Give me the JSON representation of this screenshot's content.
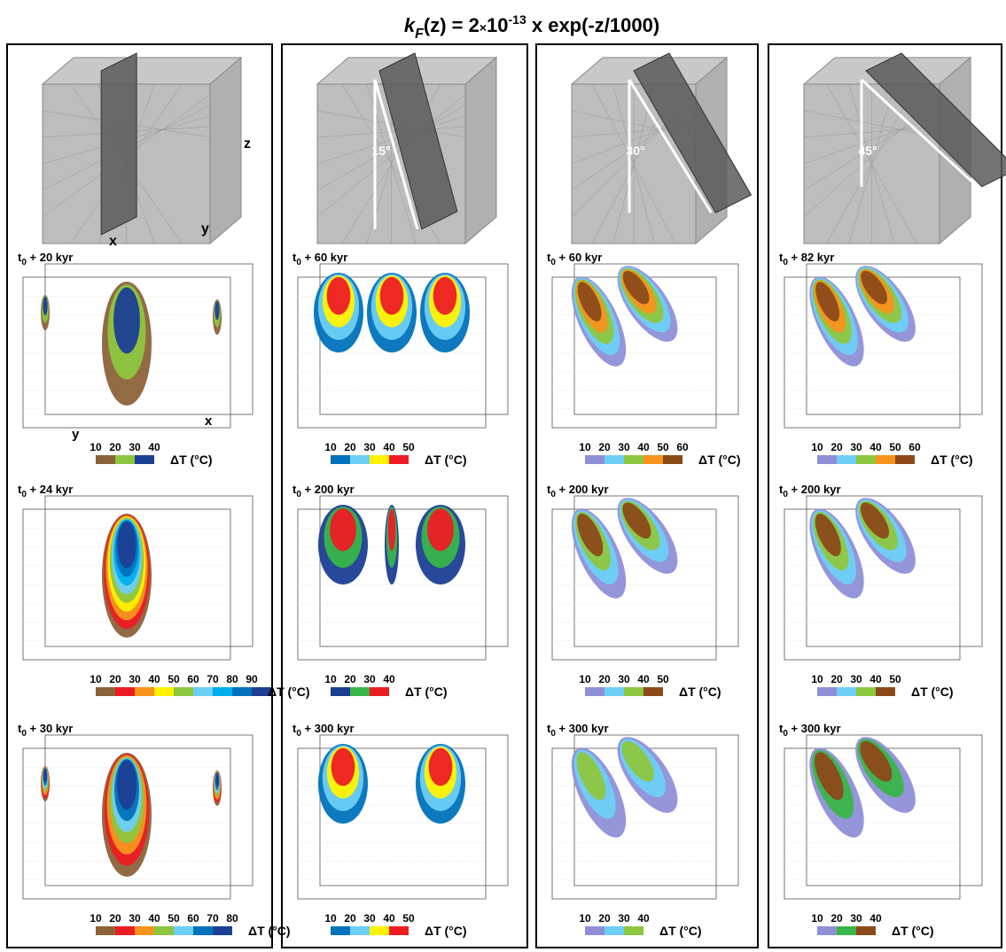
{
  "title": [
    "k",
    "F",
    "(z) = 2",
    "×",
    "10",
    "-13",
    " x exp(-z/1000)"
  ],
  "columns": [
    {
      "axes": [
        "x",
        "y",
        "z"
      ],
      "panels": [
        {
          "label": [
            "t",
            "0",
            " + 20 kyr"
          ],
          "axes": [
            "y",
            "x"
          ],
          "ticks": [
            10,
            20,
            30,
            40
          ],
          "colors": [
            "#8c6239",
            "#8dc63f",
            "#1c3f94"
          ],
          "unit": "ΔT  (°C)"
        },
        {
          "label": [
            "t",
            "0",
            " + 24 kyr"
          ],
          "ticks": [
            10,
            20,
            30,
            40,
            50,
            60,
            70,
            80,
            90
          ],
          "colors": [
            "#8c6239",
            "#ed1c24",
            "#f7941d",
            "#fff200",
            "#8dc63f",
            "#6dcff6",
            "#00aeef",
            "#0072bc",
            "#1c3f94"
          ],
          "unit": "ΔT  (°C)"
        },
        {
          "label": [
            "t",
            "0",
            " + 30 kyr"
          ],
          "ticks": [
            10,
            20,
            30,
            40,
            50,
            60,
            70,
            80
          ],
          "colors": [
            "#8c6239",
            "#ed1c24",
            "#f7941d",
            "#8dc63f",
            "#6dcff6",
            "#0072bc",
            "#1c3f94"
          ],
          "unit": "ΔT  (°C)"
        }
      ]
    },
    {
      "angle": "15°",
      "panels": [
        {
          "label": [
            "t",
            "0",
            " + 60 kyr"
          ],
          "ticks": [
            10,
            20,
            30,
            40,
            50
          ],
          "colors": [
            "#0072bc",
            "#6dcff6",
            "#fff200",
            "#ed1c24"
          ],
          "unit": "ΔT  (°C)"
        },
        {
          "label": [
            "t",
            "0",
            " + 200 kyr"
          ],
          "ticks": [
            10,
            20,
            30,
            40
          ],
          "colors": [
            "#1c3f94",
            "#39b54a",
            "#ed1c24"
          ],
          "unit": "ΔT  (°C)"
        },
        {
          "label": [
            "t",
            "0",
            " + 300 kyr"
          ],
          "ticks": [
            10,
            20,
            30,
            40,
            50
          ],
          "colors": [
            "#0072bc",
            "#6dcff6",
            "#fff200",
            "#ed1c24"
          ],
          "unit": "ΔT  (°C)"
        }
      ]
    },
    {
      "angle": "30°",
      "panels": [
        {
          "label": [
            "t",
            "0",
            " + 60 kyr"
          ],
          "ticks": [
            10,
            20,
            30,
            40,
            50,
            60
          ],
          "colors": [
            "#8f8fd8",
            "#6dcff6",
            "#8dc63f",
            "#f7941d",
            "#8c4a1a"
          ],
          "unit": "ΔT  (°C)"
        },
        {
          "label": [
            "t",
            "0",
            " + 200 kyr"
          ],
          "ticks": [
            10,
            20,
            30,
            40,
            50
          ],
          "colors": [
            "#8f8fd8",
            "#6dcff6",
            "#8dc63f",
            "#8c4a1a"
          ],
          "unit": "ΔT  (°C)"
        },
        {
          "label": [
            "t",
            "0",
            " + 300 kyr"
          ],
          "ticks": [
            10,
            20,
            30,
            40
          ],
          "colors": [
            "#8f8fd8",
            "#6dcff6",
            "#8dc63f"
          ],
          "unit": "ΔT  (°C)"
        }
      ]
    },
    {
      "angle": "45°",
      "panels": [
        {
          "label": [
            "t",
            "0",
            " + 82 kyr"
          ],
          "ticks": [
            10,
            20,
            30,
            40,
            50,
            60
          ],
          "colors": [
            "#8f8fd8",
            "#6dcff6",
            "#8dc63f",
            "#f7941d",
            "#8c4a1a"
          ],
          "unit": "ΔT  (°C)"
        },
        {
          "label": [
            "t",
            "0",
            " + 200 kyr"
          ],
          "ticks": [
            10,
            20,
            30,
            40,
            50
          ],
          "colors": [
            "#8f8fd8",
            "#6dcff6",
            "#8dc63f",
            "#8c4a1a"
          ],
          "unit": "ΔT  (°C)"
        },
        {
          "label": [
            "t",
            "0",
            " + 300 kyr"
          ],
          "ticks": [
            10,
            20,
            30,
            40
          ],
          "colors": [
            "#8f8fd8",
            "#39b54a",
            "#8c4a1a"
          ],
          "unit": "ΔT  (°C)"
        }
      ]
    }
  ]
}
